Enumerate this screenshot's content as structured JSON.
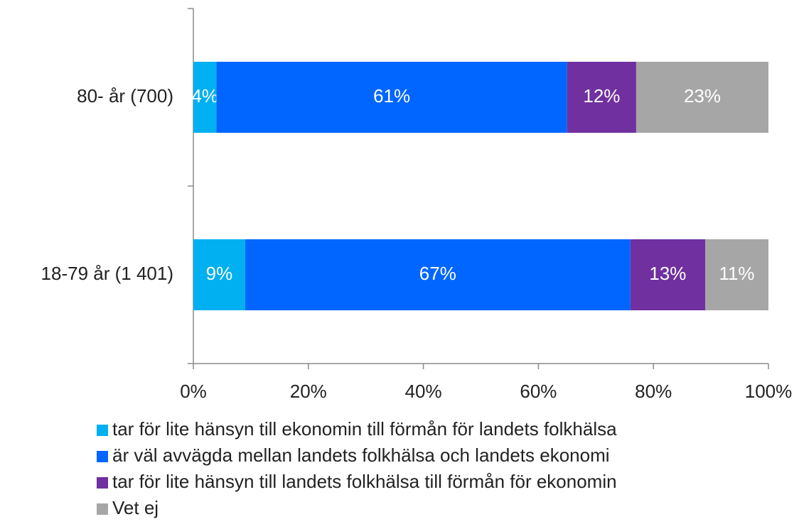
{
  "chart_data": {
    "type": "bar",
    "orientation": "horizontal",
    "stacked": true,
    "categories": [
      "80- år (700)",
      "18-79 år (1 401)"
    ],
    "series": [
      {
        "name": "tar för lite hänsyn till ekonomin till förmån för landets folkhälsa",
        "color": "#00b0f0",
        "values": [
          4,
          9
        ],
        "value_labels": [
          "4%",
          "9%"
        ]
      },
      {
        "name": "är väl avvägda mellan landets folkhälsa och landets ekonomi",
        "color": "#0066ff",
        "values": [
          61,
          67
        ],
        "value_labels": [
          "61%",
          "67%"
        ]
      },
      {
        "name": "tar för lite hänsyn till landets folkhälsa till förmån för ekonomin",
        "color": "#7030a0",
        "values": [
          12,
          13
        ],
        "value_labels": [
          "12%",
          "13%"
        ]
      },
      {
        "name": "Vet ej",
        "color": "#a6a6a6",
        "values": [
          23,
          11
        ],
        "value_labels": [
          "23%",
          "11%"
        ]
      }
    ],
    "xlim": [
      0,
      100
    ],
    "xticks": [
      {
        "value": 0,
        "label": "0%"
      },
      {
        "value": 20,
        "label": "20%"
      },
      {
        "value": 40,
        "label": "40%"
      },
      {
        "value": 60,
        "label": "60%"
      },
      {
        "value": 80,
        "label": "80%"
      },
      {
        "value": 100,
        "label": "100%"
      }
    ]
  }
}
